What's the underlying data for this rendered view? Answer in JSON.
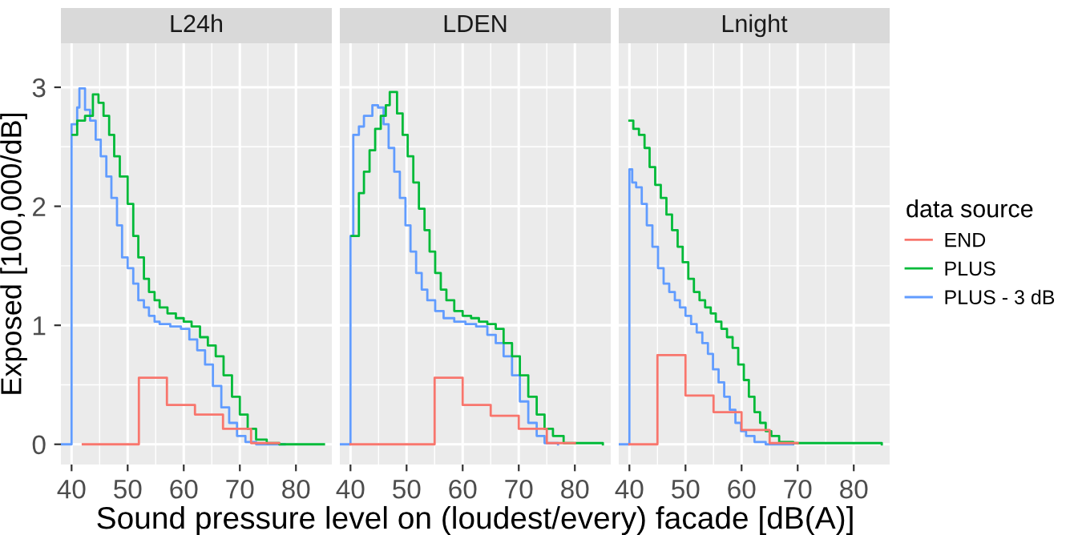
{
  "chart_data": [
    {
      "type": "step",
      "title": "L24h",
      "ylabel": "Exposed [100,000/dB]",
      "xlim": [
        38.1,
        86.4
      ],
      "xticks": [
        40,
        50,
        60,
        70,
        80
      ],
      "ylim": [
        -0.17,
        3.37
      ],
      "yticks": [
        0,
        1,
        2,
        3
      ],
      "grid": true,
      "series": [
        {
          "color": "#f8766d",
          "x": [
            42,
            52,
            57,
            62,
            67,
            72,
            77
          ],
          "values": [
            0,
            0.56,
            0.33,
            0.25,
            0.13,
            0.01,
            0.01
          ]
        },
        {
          "color": "#00ba38",
          "x": [
            40.2,
            41,
            42.4,
            43.8,
            44.8,
            45.7,
            46.7,
            47.6,
            48.6,
            50,
            51,
            51.9,
            52.9,
            53.8,
            54.8,
            55.7,
            57.1,
            58.6,
            60,
            61.4,
            62.9,
            64.3,
            65.7,
            67.1,
            68.6,
            70,
            71.4,
            72.9,
            74.8,
            77,
            85
          ],
          "values": [
            2.6,
            2.72,
            2.76,
            2.94,
            2.87,
            2.76,
            2.6,
            2.42,
            2.25,
            2.02,
            1.75,
            1.57,
            1.39,
            1.28,
            1.21,
            1.15,
            1.1,
            1.06,
            1.03,
            0.99,
            0.9,
            0.83,
            0.74,
            0.58,
            0.4,
            0.25,
            0.13,
            0.04,
            0.01,
            0,
            0
          ]
        },
        {
          "color": "#619cff",
          "x": [
            38.2,
            40,
            41,
            41.4,
            42.4,
            43.3,
            44.3,
            45.2,
            46.2,
            47.1,
            48.1,
            49,
            50,
            51,
            51.9,
            52.9,
            53.8,
            54.8,
            55.7,
            57.6,
            59.5,
            61,
            62.4,
            63.8,
            65.2,
            66.7,
            68.1,
            69.5,
            71,
            72.9,
            78
          ],
          "values": [
            0,
            2.69,
            2.83,
            2.99,
            2.81,
            2.72,
            2.56,
            2.42,
            2.25,
            2.07,
            1.84,
            1.57,
            1.48,
            1.35,
            1.21,
            1.15,
            1.08,
            1.03,
            1.01,
            0.99,
            0.97,
            0.88,
            0.79,
            0.67,
            0.49,
            0.31,
            0.18,
            0.07,
            0.02,
            0,
            0
          ]
        }
      ]
    },
    {
      "type": "step",
      "title": "LDEN",
      "xlabel": "Sound pressure level on (loudest/every) facade [dB(A)]",
      "xlim": [
        38.1,
        86.4
      ],
      "xticks": [
        40,
        50,
        60,
        70,
        80
      ],
      "ylim": [
        -0.17,
        3.37
      ],
      "yticks": [
        0,
        1,
        2,
        3
      ],
      "grid": true,
      "tick_labels": "x",
      "series": [
        {
          "color": "#f8766d",
          "x": [
            40,
            55,
            60,
            65,
            70,
            75,
            80
          ],
          "values": [
            0,
            0.56,
            0.33,
            0.24,
            0.13,
            0.01,
            0.01
          ]
        },
        {
          "color": "#00ba38",
          "x": [
            40.2,
            41.5,
            42.4,
            43.4,
            44.4,
            45.4,
            46.3,
            47,
            48.3,
            49.3,
            50.2,
            51.2,
            52.2,
            53.2,
            54.1,
            55.1,
            56.1,
            57.1,
            58.5,
            60,
            61.5,
            62.9,
            64.4,
            65.9,
            67.3,
            68.8,
            70.2,
            71.7,
            73.2,
            74.6,
            76.1,
            78,
            85
          ],
          "values": [
            1.75,
            2.11,
            2.29,
            2.47,
            2.65,
            2.76,
            2.85,
            2.96,
            2.78,
            2.6,
            2.42,
            2.2,
            1.98,
            1.8,
            1.62,
            1.44,
            1.3,
            1.21,
            1.12,
            1.08,
            1.06,
            1.03,
            1.01,
            0.97,
            0.85,
            0.74,
            0.58,
            0.4,
            0.25,
            0.13,
            0.07,
            0.01,
            0
          ]
        },
        {
          "color": "#619cff",
          "x": [
            38.2,
            40,
            40.5,
            41.5,
            42.4,
            43.9,
            44.9,
            45.9,
            46.8,
            47.8,
            48.8,
            49.8,
            50.7,
            51.7,
            52.7,
            53.7,
            55.1,
            56.6,
            58.5,
            60.5,
            62.4,
            64.4,
            65.9,
            67.3,
            68.8,
            70.2,
            71.7,
            73.2,
            74.6,
            77
          ],
          "values": [
            0,
            1.75,
            2.6,
            2.67,
            2.76,
            2.85,
            2.83,
            2.69,
            2.49,
            2.29,
            2.07,
            1.84,
            1.62,
            1.44,
            1.3,
            1.21,
            1.12,
            1.06,
            1.03,
            1.01,
            0.99,
            0.92,
            0.85,
            0.74,
            0.58,
            0.36,
            0.18,
            0.07,
            0.01,
            0
          ]
        }
      ]
    },
    {
      "type": "step",
      "title": "Lnight",
      "xlim": [
        38.1,
        86.4
      ],
      "xticks": [
        40,
        50,
        60,
        70,
        80
      ],
      "ylim": [
        -0.17,
        3.37
      ],
      "yticks": [
        0,
        1,
        2,
        3
      ],
      "grid": true,
      "tick_labels": "x",
      "legend": "right",
      "legend_title": "data source",
      "series": [
        {
          "name": "END",
          "color": "#f8766d",
          "x": [
            40,
            45,
            50,
            55,
            60,
            65,
            70
          ],
          "values": [
            0,
            0.75,
            0.41,
            0.27,
            0.12,
            0.01,
            0.01
          ]
        },
        {
          "name": "PLUS",
          "color": "#00ba38",
          "x": [
            40,
            40.7,
            41.7,
            42.7,
            43.6,
            44.6,
            45.6,
            46.6,
            47.6,
            48.6,
            49.5,
            50.5,
            51.5,
            52.5,
            53.5,
            54.5,
            55.4,
            56.4,
            57.4,
            58.4,
            59.4,
            60.4,
            61.3,
            62.3,
            63.3,
            64.3,
            65.3,
            66.7,
            69.2,
            85
          ],
          "values": [
            2.72,
            2.65,
            2.6,
            2.49,
            2.33,
            2.18,
            2.07,
            1.93,
            1.8,
            1.66,
            1.53,
            1.39,
            1.28,
            1.21,
            1.15,
            1.1,
            1.03,
            0.97,
            0.9,
            0.81,
            0.67,
            0.54,
            0.4,
            0.27,
            0.18,
            0.11,
            0.07,
            0.02,
            0.01,
            0
          ]
        },
        {
          "name": "PLUS - 3 dB",
          "color": "#619cff",
          "x": [
            38.2,
            40,
            40.5,
            41.2,
            42.2,
            43.1,
            44.1,
            45.1,
            46.1,
            47.1,
            48.1,
            49,
            50,
            51,
            52,
            53,
            54,
            54.9,
            55.9,
            56.9,
            57.9,
            58.9,
            59.9,
            60.8,
            62.3,
            64.3,
            69.2
          ],
          "values": [
            0,
            2.31,
            2.2,
            2.16,
            2.02,
            1.84,
            1.66,
            1.48,
            1.35,
            1.28,
            1.21,
            1.15,
            1.08,
            1.01,
            0.94,
            0.85,
            0.76,
            0.63,
            0.52,
            0.4,
            0.29,
            0.18,
            0.11,
            0.07,
            0.02,
            0,
            0
          ]
        }
      ]
    }
  ]
}
